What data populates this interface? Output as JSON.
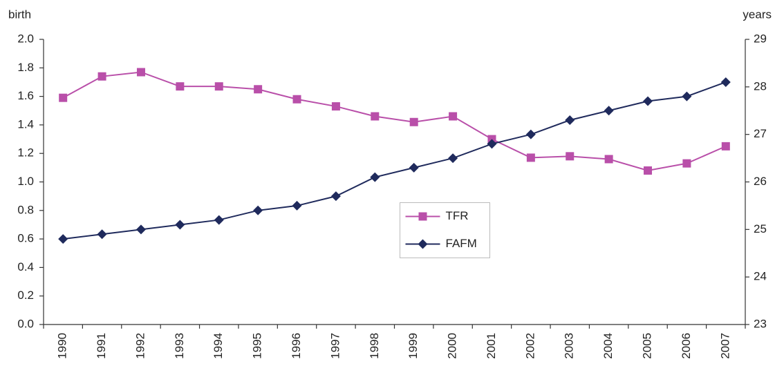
{
  "chart_data": {
    "type": "line",
    "ylabel": "birth",
    "y2label": "years",
    "categories": [
      "1990",
      "1991",
      "1992",
      "1993",
      "1994",
      "1995",
      "1996",
      "1997",
      "1998",
      "1999",
      "2000",
      "2001",
      "2002",
      "2003",
      "2004",
      "2005",
      "2006",
      "2007"
    ],
    "series": [
      {
        "name": "TFR",
        "color": "#b94fa9",
        "marker": "square",
        "axis": "y",
        "values": [
          1.59,
          1.74,
          1.77,
          1.67,
          1.67,
          1.65,
          1.58,
          1.53,
          1.46,
          1.42,
          1.46,
          1.3,
          1.17,
          1.18,
          1.16,
          1.08,
          1.13,
          1.25
        ]
      },
      {
        "name": "FAFM",
        "color": "#1f2a5c",
        "marker": "diamond",
        "axis": "y2",
        "values": [
          24.8,
          24.9,
          25.0,
          25.1,
          25.2,
          25.4,
          25.5,
          25.7,
          26.1,
          26.3,
          26.5,
          26.8,
          27.0,
          27.3,
          27.5,
          27.7,
          27.8,
          28.1
        ]
      }
    ],
    "ylim": [
      0,
      2
    ],
    "yticks": [
      {
        "value": 0,
        "label": "0.0"
      },
      {
        "value": 0.2,
        "label": "0.2"
      },
      {
        "value": 0.4,
        "label": "0.4"
      },
      {
        "value": 0.6,
        "label": "0.6"
      },
      {
        "value": 0.8,
        "label": "0.8"
      },
      {
        "value": 1,
        "label": "1.0"
      },
      {
        "value": 1.2,
        "label": "1.2"
      },
      {
        "value": 1.4,
        "label": "1.4"
      },
      {
        "value": 1.6,
        "label": "1.6"
      },
      {
        "value": 1.8,
        "label": "1.8"
      },
      {
        "value": 2,
        "label": "2.0"
      }
    ],
    "y2lim": [
      23,
      29
    ],
    "y2ticks": [
      23,
      24,
      25,
      26,
      27,
      28,
      29
    ],
    "grid": false,
    "legend": "center"
  }
}
